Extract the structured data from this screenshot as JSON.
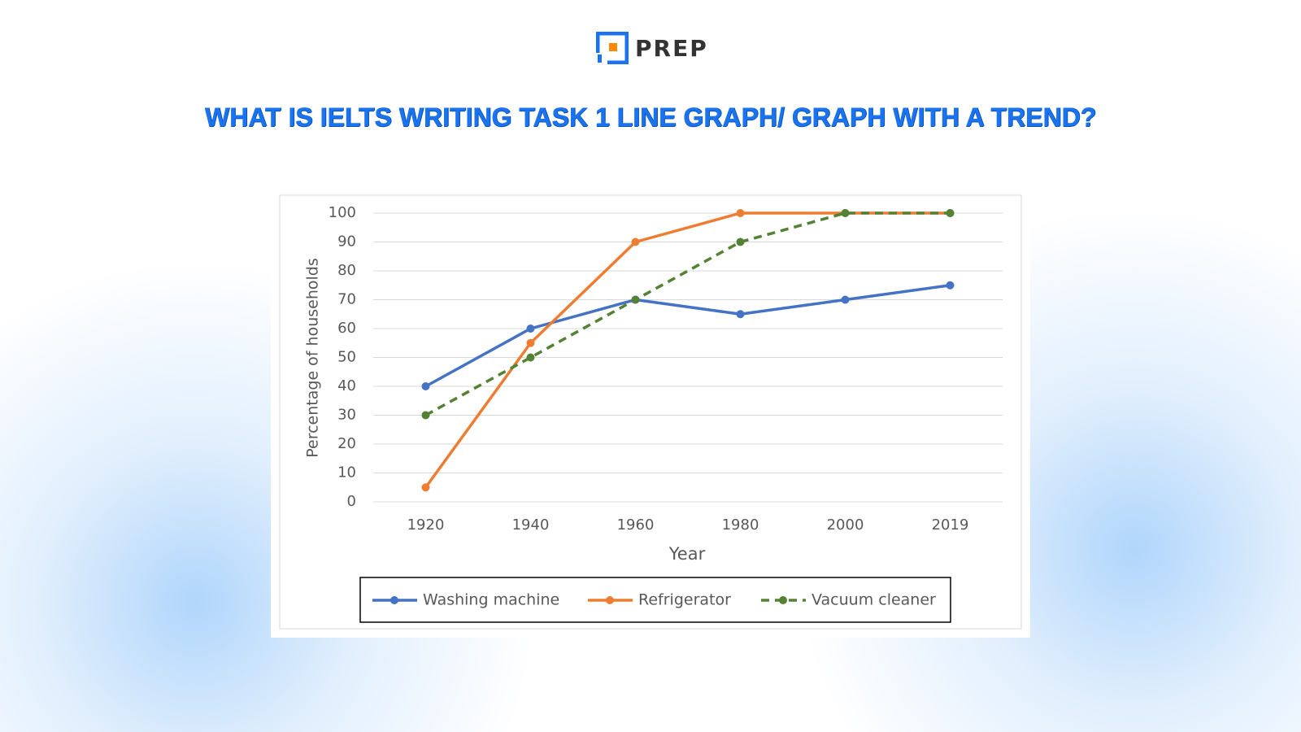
{
  "brand": "PREP",
  "headline": "WHAT IS IELTS WRITING TASK 1 LINE GRAPH/ GRAPH WITH A TREND?",
  "chart_data": {
    "type": "line",
    "x_label": "Year",
    "y_label": "Percentage of households",
    "categories": [
      "1920",
      "1940",
      "1960",
      "1980",
      "2000",
      "2019"
    ],
    "series": [
      {
        "name": "Washing machine",
        "color": "#4472c4",
        "dashed": false,
        "values": [
          40,
          60,
          70,
          65,
          70,
          75
        ]
      },
      {
        "name": "Refrigerator",
        "color": "#ed7d31",
        "dashed": false,
        "values": [
          5,
          55,
          90,
          100,
          100,
          100
        ]
      },
      {
        "name": "Vacuum cleaner",
        "color": "#548235",
        "dashed": true,
        "values": [
          30,
          50,
          70,
          90,
          100,
          100
        ]
      }
    ],
    "ylim": [
      0,
      100
    ],
    "yticks": [
      0,
      10,
      20,
      30,
      40,
      50,
      60,
      70,
      80,
      90,
      100
    ],
    "grid": true,
    "legend": "bottom"
  }
}
